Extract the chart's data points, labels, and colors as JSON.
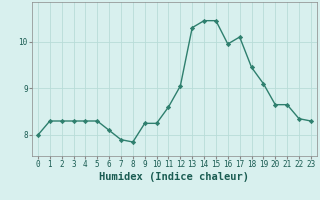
{
  "x": [
    0,
    1,
    2,
    3,
    4,
    5,
    6,
    7,
    8,
    9,
    10,
    11,
    12,
    13,
    14,
    15,
    16,
    17,
    18,
    19,
    20,
    21,
    22,
    23
  ],
  "y": [
    8.0,
    8.3,
    8.3,
    8.3,
    8.3,
    8.3,
    8.1,
    7.9,
    7.85,
    8.25,
    8.25,
    8.6,
    9.05,
    10.3,
    10.45,
    10.45,
    9.95,
    10.1,
    9.45,
    9.1,
    8.65,
    8.65,
    8.35,
    8.3
  ],
  "line_color": "#2e7f6e",
  "marker": "D",
  "marker_size": 2.2,
  "linewidth": 1.0,
  "xlabel": "Humidex (Indice chaleur)",
  "ylabel": "",
  "title": "",
  "bg_color": "#d8f0ee",
  "grid_color": "#b8dcd8",
  "ylim": [
    7.55,
    10.85
  ],
  "xlim": [
    -0.5,
    23.5
  ],
  "yticks": [
    8,
    9,
    10
  ],
  "xticks": [
    0,
    1,
    2,
    3,
    4,
    5,
    6,
    7,
    8,
    9,
    10,
    11,
    12,
    13,
    14,
    15,
    16,
    17,
    18,
    19,
    20,
    21,
    22,
    23
  ],
  "tick_fontsize": 5.5,
  "xlabel_fontsize": 7.5
}
